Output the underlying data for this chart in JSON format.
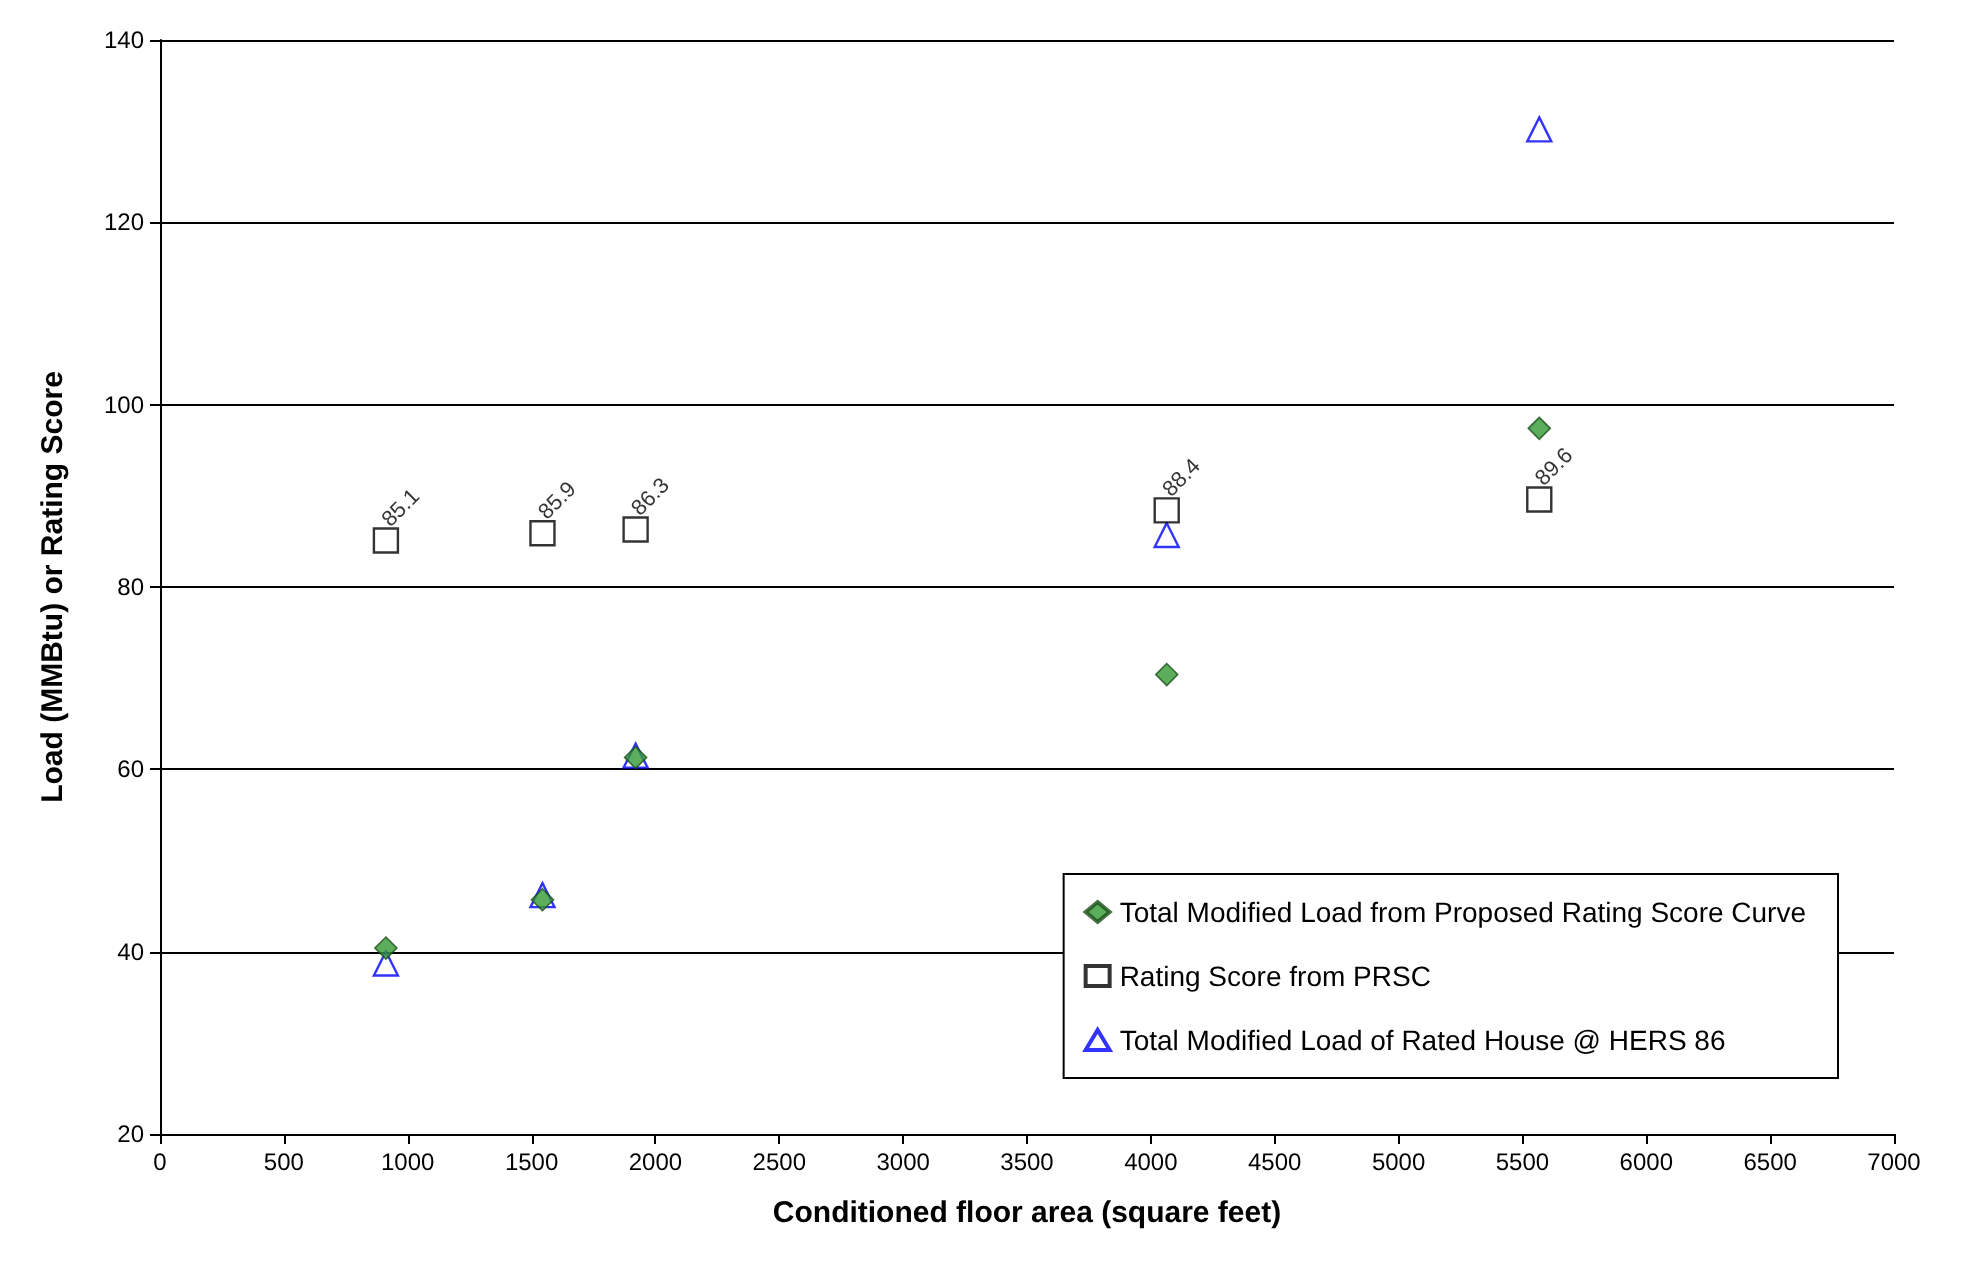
{
  "chart_data": {
    "type": "scatter",
    "xlabel": "Conditioned floor area (square feet)",
    "ylabel": "Load (MMBtu) or Rating Score",
    "xlim": [
      0,
      7000
    ],
    "xticks": [
      0,
      500,
      1000,
      1500,
      2000,
      2500,
      3000,
      3500,
      4000,
      4500,
      5000,
      5500,
      6000,
      6500,
      7000
    ],
    "ylim": [
      20,
      140
    ],
    "yticks": [
      20,
      40,
      60,
      80,
      100,
      120,
      140
    ],
    "grid": "y",
    "legend": "bottom right",
    "x": [
      912,
      1544,
      1920,
      4064,
      5568
    ],
    "series": [
      {
        "name": "Total Modified Load from Proposed Rating Score Curve",
        "color": "#339933",
        "marker": "diamond",
        "values": [
          40.4,
          45.7,
          61.3,
          70.4,
          97.4
        ]
      },
      {
        "name": "Rating Score from PRSC",
        "color": "#000000",
        "marker": "square",
        "values": [
          85.1,
          85.9,
          86.3,
          88.4,
          89.6
        ],
        "value_labels": [
          "85.1",
          "85.9",
          "86.3",
          "88.4",
          "89.6"
        ]
      },
      {
        "name": "Total Modified Load of Rated House @ HERS 86",
        "color": "#0000ff",
        "marker": "triangle",
        "values": [
          38.7,
          46.2,
          61.5,
          85.7,
          130.2
        ]
      }
    ]
  }
}
